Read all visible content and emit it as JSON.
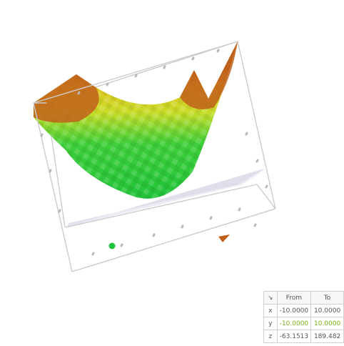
{
  "colors": {
    "surface_low": "#22c33a",
    "surface_mid": "#c8dd2a",
    "surface_high": "#c0601a",
    "frame": "#cccccc",
    "floor_plane": "#d6d8e6",
    "y_accent": "#7ab317"
  },
  "table": {
    "corner_icon": "arrow-down-right-icon",
    "corner_glyph": "↘",
    "header": {
      "from": "From",
      "to": "To"
    },
    "rows": [
      {
        "axis": "x",
        "from": "-10.0000",
        "to": "10.0000"
      },
      {
        "axis": "y",
        "from": "-10.0000",
        "to": "10.0000"
      },
      {
        "axis": "z",
        "from": "-63.1513",
        "to": "189.482"
      }
    ]
  }
}
